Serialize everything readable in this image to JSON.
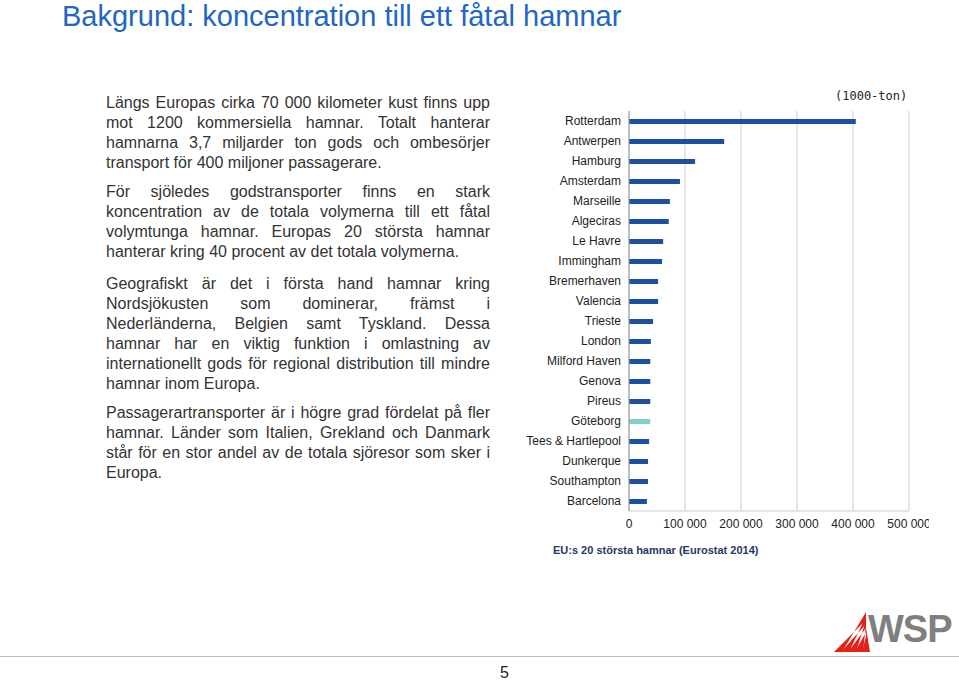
{
  "chart_data": {
    "type": "bar",
    "orientation": "horizontal",
    "title": "EU:s 20 största hamnar (Eurostat 2014)",
    "xlabel": "(1000-ton)",
    "categories": [
      "Rotterdam",
      "Antwerpen",
      "Hamburg",
      "Amsterdam",
      "Marseille",
      "Algeciras",
      "Le Havre",
      "Immingham",
      "Bremerhaven",
      "Valencia",
      "Trieste",
      "London",
      "Milford Haven",
      "Genova",
      "Pireus",
      "Göteborg",
      "Tees & Hartlepool",
      "Dunkerque",
      "Southampton",
      "Barcelona"
    ],
    "values": [
      405000,
      170000,
      118000,
      91000,
      73000,
      71000,
      61000,
      59000,
      52000,
      52000,
      43000,
      39000,
      38000,
      38000,
      38000,
      38000,
      36000,
      34000,
      34000,
      32000
    ],
    "colors": [
      "#1f4fa3",
      "#1f4fa3",
      "#1f4fa3",
      "#1f4fa3",
      "#1f4fa3",
      "#1f4fa3",
      "#1f4fa3",
      "#1f4fa3",
      "#1f4fa3",
      "#1f4fa3",
      "#1f4fa3",
      "#1f4fa3",
      "#1f4fa3",
      "#1f4fa3",
      "#1f4fa3",
      "#7fcfcf",
      "#1f4fa3",
      "#1f4fa3",
      "#1f4fa3",
      "#1f4fa3"
    ],
    "xlim": [
      0,
      500000
    ],
    "xticks": [
      0,
      {
        "value": 100000,
        "label": "100 000"
      },
      {
        "value": 200000,
        "label": "200 000"
      },
      {
        "value": 300000,
        "label": "300 000"
      },
      {
        "value": 400000,
        "label": "400 000"
      },
      {
        "value": 500000,
        "label": "500 000"
      }
    ],
    "grid": true,
    "data_labels": false
  },
  "slide": {
    "title": "Bakgrund: koncentration till ett fåtal hamnar",
    "paragraphs": [
      "Längs Europas cirka 70 000 kilometer kust finns upp mot 1200 kommersiella hamnar. Totalt hanterar hamnarna 3,7 miljarder ton gods och ombesörjer transport för 400 miljoner passagerare.",
      "För sjöledes godstransporter finns en stark koncentration av de totala volymerna till ett fåtal volymtunga hamnar. Europas 20 största hamnar hanterar kring 40 procent av det totala volymerna.",
      "Geografiskt är det i första hand hamnar kring Nordsjökusten som dominerar, främst i Nederländerna, Belgien samt Tyskland. Dessa hamnar har en viktig funktion i omlastning av internationellt gods för regional distribution till mindre hamnar inom Europa.",
      "Passagerartransporter är i högre grad fördelat på fler hamnar. Länder som Italien, Grekland och Danmark står för en stor andel av de totala sjöresor som sker i Europa."
    ],
    "page_number": "5",
    "logo": "WSP"
  }
}
